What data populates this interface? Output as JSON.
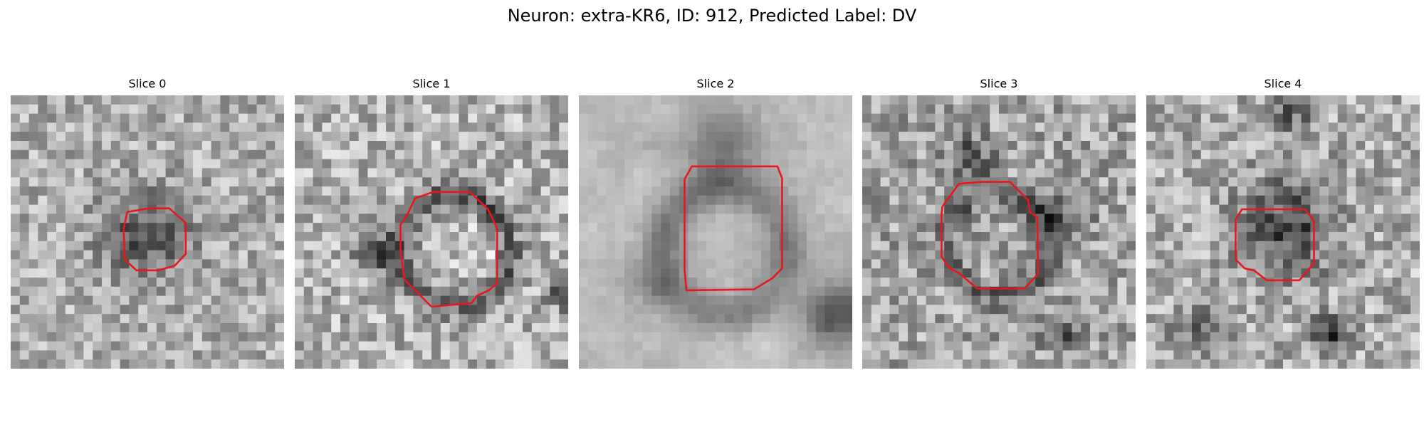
{
  "figure": {
    "title": "Neuron: extra-KR6, ID: 912, Predicted Label: DV"
  },
  "colors": {
    "roi_outline": "#e8171b",
    "background": "#ffffff"
  },
  "panels": [
    {
      "label": "Slice 0",
      "content": "grayscale-noise-image",
      "roi": "red-octagon-outline"
    },
    {
      "label": "Slice 1",
      "content": "grayscale-noise-image",
      "roi": "red-octagon-outline"
    },
    {
      "label": "Slice 2",
      "content": "grayscale-noise-image",
      "roi": "red-octagon-outline"
    },
    {
      "label": "Slice 3",
      "content": "grayscale-noise-image",
      "roi": "red-octagon-outline"
    },
    {
      "label": "Slice 4",
      "content": "grayscale-noise-image",
      "roi": "red-octagon-outline"
    }
  ]
}
